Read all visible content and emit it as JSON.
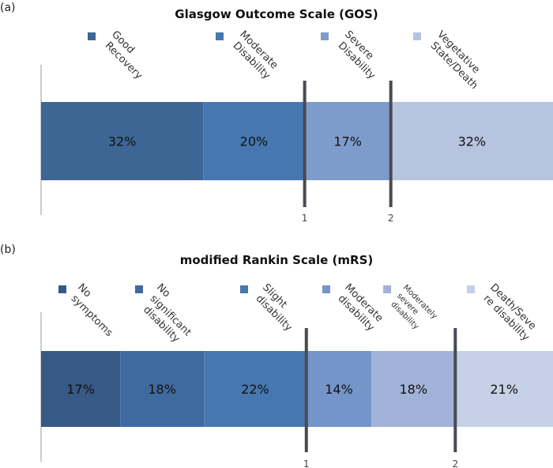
{
  "chart_data": [
    {
      "type": "bar",
      "stacked": true,
      "orientation": "horizontal",
      "panel": "(a)",
      "title": "Glasgow Outcome Scale (GOS)",
      "categories": [
        "Good Recovery",
        "Moderate Disability",
        "Severe Disability",
        "Vegetative State/Death"
      ],
      "legend_lines": [
        [
          "Good",
          "Recovery"
        ],
        [
          "Moderate",
          "Disability"
        ],
        [
          "Severe",
          "Disability"
        ],
        [
          "Vegetative",
          "State/Death"
        ]
      ],
      "values": [
        32,
        20,
        17,
        32
      ],
      "labels": [
        "32%",
        "20%",
        "17%",
        "32%"
      ],
      "colors": [
        "#3d6694",
        "#4677b0",
        "#7e9ccb",
        "#b6c4e0"
      ],
      "cutoffs": [
        {
          "label": "1",
          "after_index": 1
        },
        {
          "label": "2",
          "after_index": 2
        }
      ],
      "legend_position": "top"
    },
    {
      "type": "bar",
      "stacked": true,
      "orientation": "horizontal",
      "panel": "(b)",
      "title": "modified Rankin Scale (mRS)",
      "categories": [
        "No symptoms",
        "No significant disability",
        "Slight disability",
        "Moderate disability",
        "Moderately severe disability",
        "Death/Severe disability"
      ],
      "legend_lines": [
        [
          "No",
          "symptoms"
        ],
        [
          "No",
          "significant",
          "disability"
        ],
        [
          "Slight",
          "disability"
        ],
        [
          "Moderate",
          "disability"
        ],
        [
          "Moderately",
          "severe",
          "disability"
        ],
        [
          "Death/Seve",
          "re disability"
        ]
      ],
      "values": [
        17,
        18,
        22,
        14,
        18,
        21
      ],
      "labels": [
        "17%",
        "18%",
        "22%",
        "14%",
        "18%",
        "21%"
      ],
      "colors": [
        "#375985",
        "#3f6a9f",
        "#4677b0",
        "#7495c9",
        "#a1b3d8",
        "#c6d0e7"
      ],
      "cutoffs": [
        {
          "label": "1",
          "after_index": 2
        },
        {
          "label": "2",
          "after_index": 4
        }
      ],
      "legend_position": "top"
    }
  ]
}
